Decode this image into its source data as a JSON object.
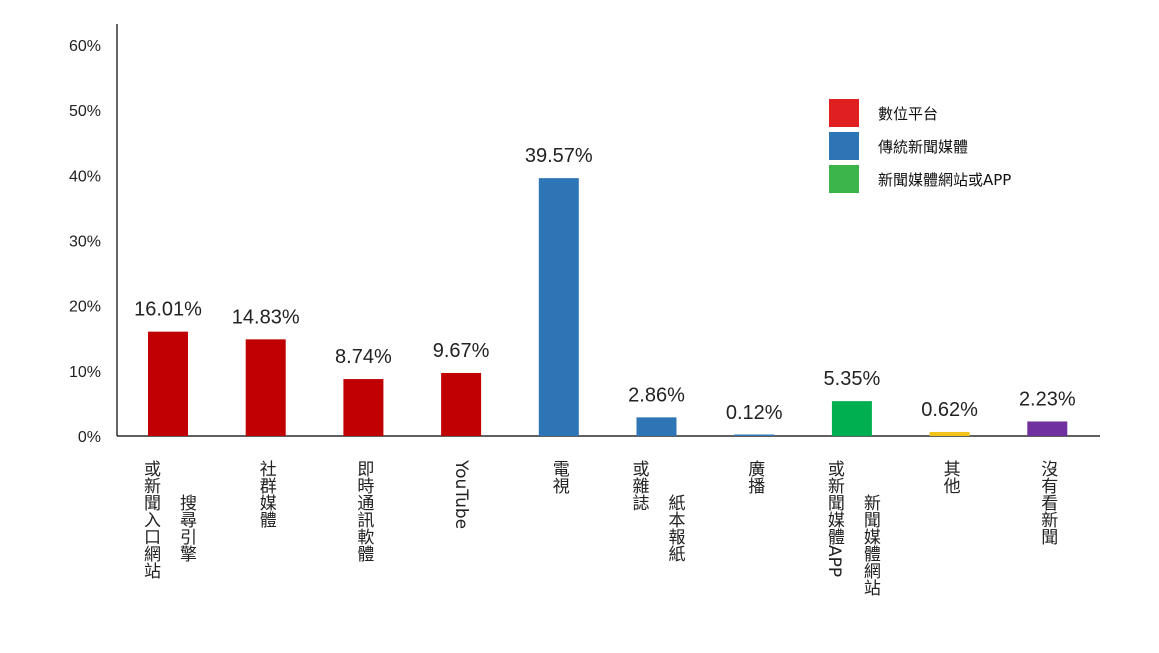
{
  "chart_data": {
    "type": "bar",
    "ylim": [
      0,
      60
    ],
    "yticks": [
      "0%",
      "10%",
      "20%",
      "30%",
      "40%",
      "50%",
      "60%"
    ],
    "categories": [
      {
        "lines": [
          "或新聞入口網站",
          "搜尋引擎"
        ],
        "value": 16.01,
        "label": "16.01%",
        "group": 0
      },
      {
        "lines": [
          "社群媒體"
        ],
        "value": 14.83,
        "label": "14.83%",
        "group": 0
      },
      {
        "lines": [
          "即時通訊軟體"
        ],
        "value": 8.74,
        "label": "8.74%",
        "group": 0
      },
      {
        "lines": [
          "YouTube"
        ],
        "value": 9.67,
        "label": "9.67%",
        "group": 0
      },
      {
        "lines": [
          "電視"
        ],
        "value": 39.57,
        "label": "39.57%",
        "group": 1
      },
      {
        "lines": [
          "或雜誌",
          "紙本報紙"
        ],
        "value": 2.86,
        "label": "2.86%",
        "group": 1
      },
      {
        "lines": [
          "廣播"
        ],
        "value": 0.12,
        "label": "0.12%",
        "group": 1
      },
      {
        "lines": [
          "或新聞媒體APP",
          "新聞媒體網站"
        ],
        "value": 5.35,
        "label": "5.35%",
        "group": 2
      },
      {
        "lines": [
          "其他"
        ],
        "value": 0.62,
        "label": "0.62%",
        "group": 3
      },
      {
        "lines": [
          "沒有看新聞"
        ],
        "value": 2.23,
        "label": "2.23%",
        "group": 4
      }
    ],
    "groups": [
      {
        "color": "#c00000"
      },
      {
        "color": "#2e75b6"
      },
      {
        "color": "#00b050"
      },
      {
        "color": "#f0c419"
      },
      {
        "color": "#7030a0"
      }
    ],
    "legend": [
      {
        "name": "數位平台",
        "color": "#e02020"
      },
      {
        "name": "傳統新聞媒體",
        "color": "#2e75b6"
      },
      {
        "name": "新聞媒體網站或APP",
        "color": "#3cb54a"
      }
    ],
    "legend_position": "top-right",
    "grid": false
  }
}
